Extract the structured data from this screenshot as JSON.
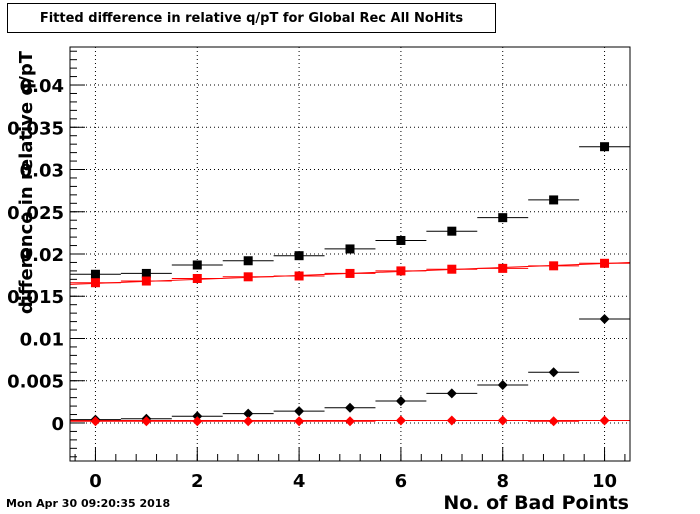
{
  "chart_data": {
    "type": "scatter",
    "title": "Fitted difference in relative q/pT for Global Rec All NoHits",
    "xlabel": "No. of Bad Points",
    "ylabel": "difference in relative q/pT",
    "xlim": [
      -0.5,
      10.5
    ],
    "ylim": [
      -0.0045,
      0.0445
    ],
    "x_ticks": [
      0,
      2,
      4,
      6,
      8,
      10
    ],
    "x_tick_labels": [
      "0",
      "2",
      "4",
      "6",
      "8",
      "10"
    ],
    "y_ticks": [
      0,
      0.005,
      0.01,
      0.015,
      0.02,
      0.025,
      0.03,
      0.035,
      0.04
    ],
    "y_tick_labels": [
      "0",
      "0.005",
      "0.01",
      "0.015",
      "0.02",
      "0.025",
      "0.03",
      "0.035",
      "0.04"
    ],
    "grid": true,
    "x": [
      0,
      1,
      2,
      3,
      4,
      5,
      6,
      7,
      8,
      9,
      10
    ],
    "x_error": 0.5,
    "series": [
      {
        "marker": "square",
        "color": "#000000",
        "values": [
          0.0176,
          0.0177,
          0.0187,
          0.0192,
          0.0198,
          0.0206,
          0.0216,
          0.0227,
          0.0243,
          0.0264,
          0.0327
        ]
      },
      {
        "marker": "square",
        "color": "#ff0000",
        "values": [
          0.0166,
          0.0168,
          0.0171,
          0.0173,
          0.0174,
          0.0177,
          0.018,
          0.0182,
          0.0183,
          0.0186,
          0.0189
        ],
        "fit_line": {
          "color": "#ff0000",
          "y0": 0.0164,
          "y1": 0.019
        }
      },
      {
        "marker": "diamond",
        "color": "#000000",
        "values": [
          0.0004,
          0.0005,
          0.0008,
          0.0011,
          0.0014,
          0.0018,
          0.0026,
          0.0035,
          0.0045,
          0.006,
          0.0123
        ]
      },
      {
        "marker": "diamond",
        "color": "#ff0000",
        "values": [
          0.0002,
          0.0002,
          0.0002,
          0.0002,
          0.0002,
          0.0002,
          0.0003,
          0.0003,
          0.0003,
          0.0002,
          0.0003
        ],
        "fit_line": {
          "color": "#ff0000",
          "y0": 0.0003,
          "y1": 0.0003
        }
      }
    ]
  },
  "footer": {
    "date": "Mon Apr 30 09:20:35 2018"
  }
}
